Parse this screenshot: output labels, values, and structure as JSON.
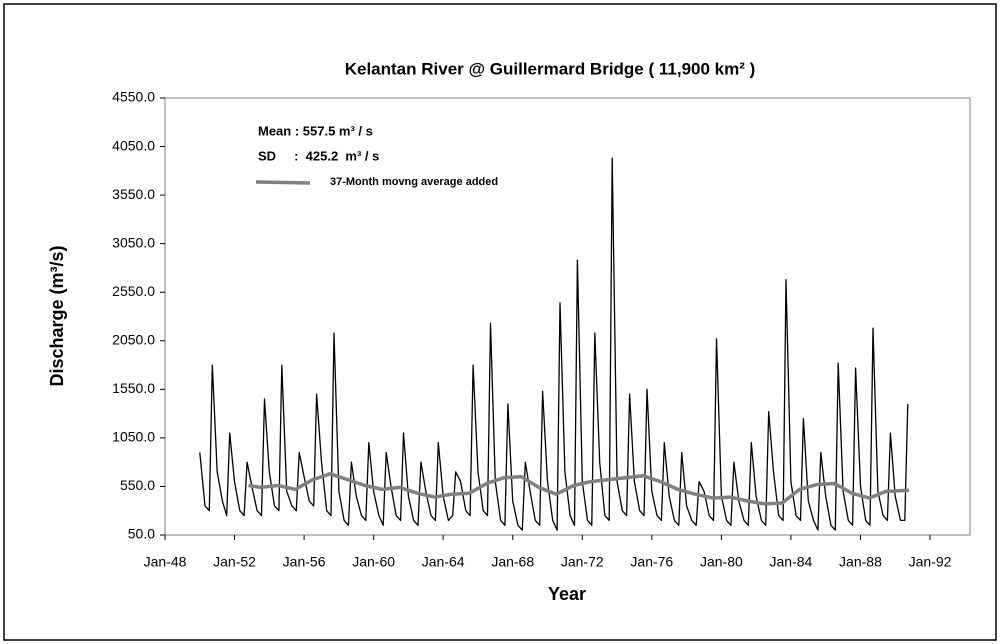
{
  "chart_data": {
    "type": "line",
    "title": "Kelantan River @ Guillermard Bridge   ( 11,900 km² )",
    "x_label": "Year",
    "y_label": "Discharge (m³/s)",
    "annotations": [
      "Mean :  557.5  m³ / s",
      "SD     :  425.2  m³ / s"
    ],
    "xlim": [
      1948,
      1994.3
    ],
    "xticks": [
      {
        "value": 1948,
        "label": "Jan-48"
      },
      {
        "value": 1952,
        "label": "Jan-52"
      },
      {
        "value": 1956,
        "label": "Jan-56"
      },
      {
        "value": 1960,
        "label": "Jan-60"
      },
      {
        "value": 1964,
        "label": "Jan-64"
      },
      {
        "value": 1968,
        "label": "Jan-68"
      },
      {
        "value": 1972,
        "label": "Jan-72"
      },
      {
        "value": 1976,
        "label": "Jan-76"
      },
      {
        "value": 1980,
        "label": "Jan-80"
      },
      {
        "value": 1984,
        "label": "Jan-84"
      },
      {
        "value": 1988,
        "label": "Jan-88"
      },
      {
        "value": 1992,
        "label": "Jan-92"
      }
    ],
    "ylim": [
      50,
      4550
    ],
    "yticks": [
      {
        "value": 50,
        "label": "50.0"
      },
      {
        "value": 550,
        "label": "550.0"
      },
      {
        "value": 1050,
        "label": "1050.0"
      },
      {
        "value": 1550,
        "label": "1550.0"
      },
      {
        "value": 2050,
        "label": "2050.0"
      },
      {
        "value": 2550,
        "label": "2550.0"
      },
      {
        "value": 3050,
        "label": "3050.0"
      },
      {
        "value": 3550,
        "label": "3550.0"
      },
      {
        "value": 4050,
        "label": "4050.0"
      },
      {
        "value": 4550,
        "label": "4550.0"
      }
    ],
    "grid": false,
    "series": [
      {
        "color": "#000000",
        "width": 1.3,
        "x": [
          1950,
          1950.3,
          1950.55,
          1950.72,
          1951,
          1951.3,
          1951.55,
          1951.72,
          1952,
          1952.3,
          1952.55,
          1952.72,
          1953,
          1953.3,
          1953.55,
          1953.72,
          1954,
          1954.3,
          1954.55,
          1954.72,
          1955,
          1955.3,
          1955.55,
          1955.72,
          1956,
          1956.3,
          1956.55,
          1956.72,
          1957,
          1957.3,
          1957.55,
          1957.72,
          1958,
          1958.3,
          1958.55,
          1958.72,
          1959,
          1959.3,
          1959.55,
          1959.72,
          1960,
          1960.3,
          1960.55,
          1960.72,
          1961,
          1961.3,
          1961.55,
          1961.72,
          1962,
          1962.3,
          1962.55,
          1962.72,
          1963,
          1963.3,
          1963.55,
          1963.72,
          1964,
          1964.3,
          1964.55,
          1964.72,
          1965,
          1965.3,
          1965.55,
          1965.72,
          1966,
          1966.3,
          1966.55,
          1966.72,
          1967,
          1967.3,
          1967.55,
          1967.72,
          1968,
          1968.3,
          1968.55,
          1968.72,
          1969,
          1969.3,
          1969.55,
          1969.72,
          1970,
          1970.3,
          1970.55,
          1970.72,
          1971,
          1971.3,
          1971.55,
          1971.72,
          1972,
          1972.3,
          1972.55,
          1972.72,
          1973,
          1973.3,
          1973.55,
          1973.72,
          1974,
          1974.3,
          1974.55,
          1974.72,
          1975,
          1975.3,
          1975.55,
          1975.72,
          1976,
          1976.3,
          1976.55,
          1976.72,
          1977,
          1977.3,
          1977.55,
          1977.72,
          1978,
          1978.3,
          1978.55,
          1978.72,
          1979,
          1979.3,
          1979.55,
          1979.72,
          1980,
          1980.3,
          1980.55,
          1980.72,
          1981,
          1981.3,
          1981.55,
          1981.72,
          1982,
          1982.3,
          1982.55,
          1982.72,
          1983,
          1983.3,
          1983.55,
          1983.72,
          1984,
          1984.3,
          1984.55,
          1984.72,
          1985,
          1985.3,
          1985.55,
          1985.72,
          1986,
          1986.3,
          1986.55,
          1986.72,
          1987,
          1987.3,
          1987.55,
          1987.72,
          1988,
          1988.3,
          1988.55,
          1988.72,
          1989,
          1989.3,
          1989.55,
          1989.72,
          1990,
          1990.3,
          1990.55,
          1990.72
        ],
        "values": [
          900,
          350,
          300,
          1800,
          700,
          400,
          250,
          1100,
          600,
          300,
          250,
          800,
          550,
          300,
          250,
          1450,
          700,
          350,
          300,
          1800,
          500,
          350,
          300,
          900,
          650,
          400,
          350,
          1500,
          800,
          300,
          250,
          2130,
          500,
          200,
          150,
          800,
          450,
          250,
          200,
          1000,
          500,
          250,
          150,
          900,
          550,
          250,
          200,
          1100,
          450,
          200,
          150,
          800,
          500,
          250,
          200,
          1000,
          450,
          200,
          250,
          700,
          600,
          300,
          250,
          1800,
          700,
          300,
          250,
          2230,
          600,
          200,
          150,
          1400,
          400,
          150,
          100,
          800,
          500,
          200,
          150,
          1530,
          600,
          200,
          100,
          2440,
          700,
          250,
          150,
          2880,
          600,
          200,
          150,
          2130,
          800,
          250,
          200,
          3930,
          600,
          300,
          250,
          1500,
          600,
          300,
          250,
          1550,
          500,
          250,
          200,
          1000,
          450,
          200,
          150,
          900,
          350,
          200,
          150,
          600,
          500,
          250,
          200,
          2070,
          450,
          200,
          150,
          800,
          400,
          200,
          150,
          1000,
          450,
          200,
          150,
          1320,
          700,
          250,
          200,
          2680,
          600,
          250,
          200,
          1250,
          400,
          200,
          100,
          900,
          450,
          150,
          100,
          1820,
          500,
          200,
          150,
          1770,
          550,
          200,
          150,
          2180,
          500,
          250,
          200,
          1100,
          450,
          200,
          200,
          1400
        ]
      },
      {
        "name": "37-Month movng average added",
        "color": "#808080",
        "width": 3.5,
        "x": [
          1952.8,
          1953.5,
          1954.5,
          1955.5,
          1956.5,
          1957.5,
          1958.5,
          1959.5,
          1960.5,
          1961.5,
          1962.5,
          1963.5,
          1964.5,
          1965.5,
          1966.5,
          1967.5,
          1968.5,
          1969.5,
          1970.5,
          1971.5,
          1972.5,
          1973.5,
          1974.5,
          1975.5,
          1976.5,
          1977.5,
          1978.5,
          1979.5,
          1980.5,
          1981.5,
          1982.5,
          1983.5,
          1984.5,
          1985.5,
          1986.5,
          1987.5,
          1988.5,
          1989.5,
          1990.8
        ],
        "values": [
          560,
          540,
          560,
          520,
          620,
          680,
          620,
          560,
          520,
          540,
          480,
          440,
          470,
          480,
          580,
          640,
          650,
          540,
          470,
          560,
          600,
          620,
          640,
          660,
          600,
          520,
          470,
          430,
          440,
          400,
          370,
          380,
          520,
          570,
          580,
          480,
          430,
          500,
          510
        ]
      }
    ]
  }
}
